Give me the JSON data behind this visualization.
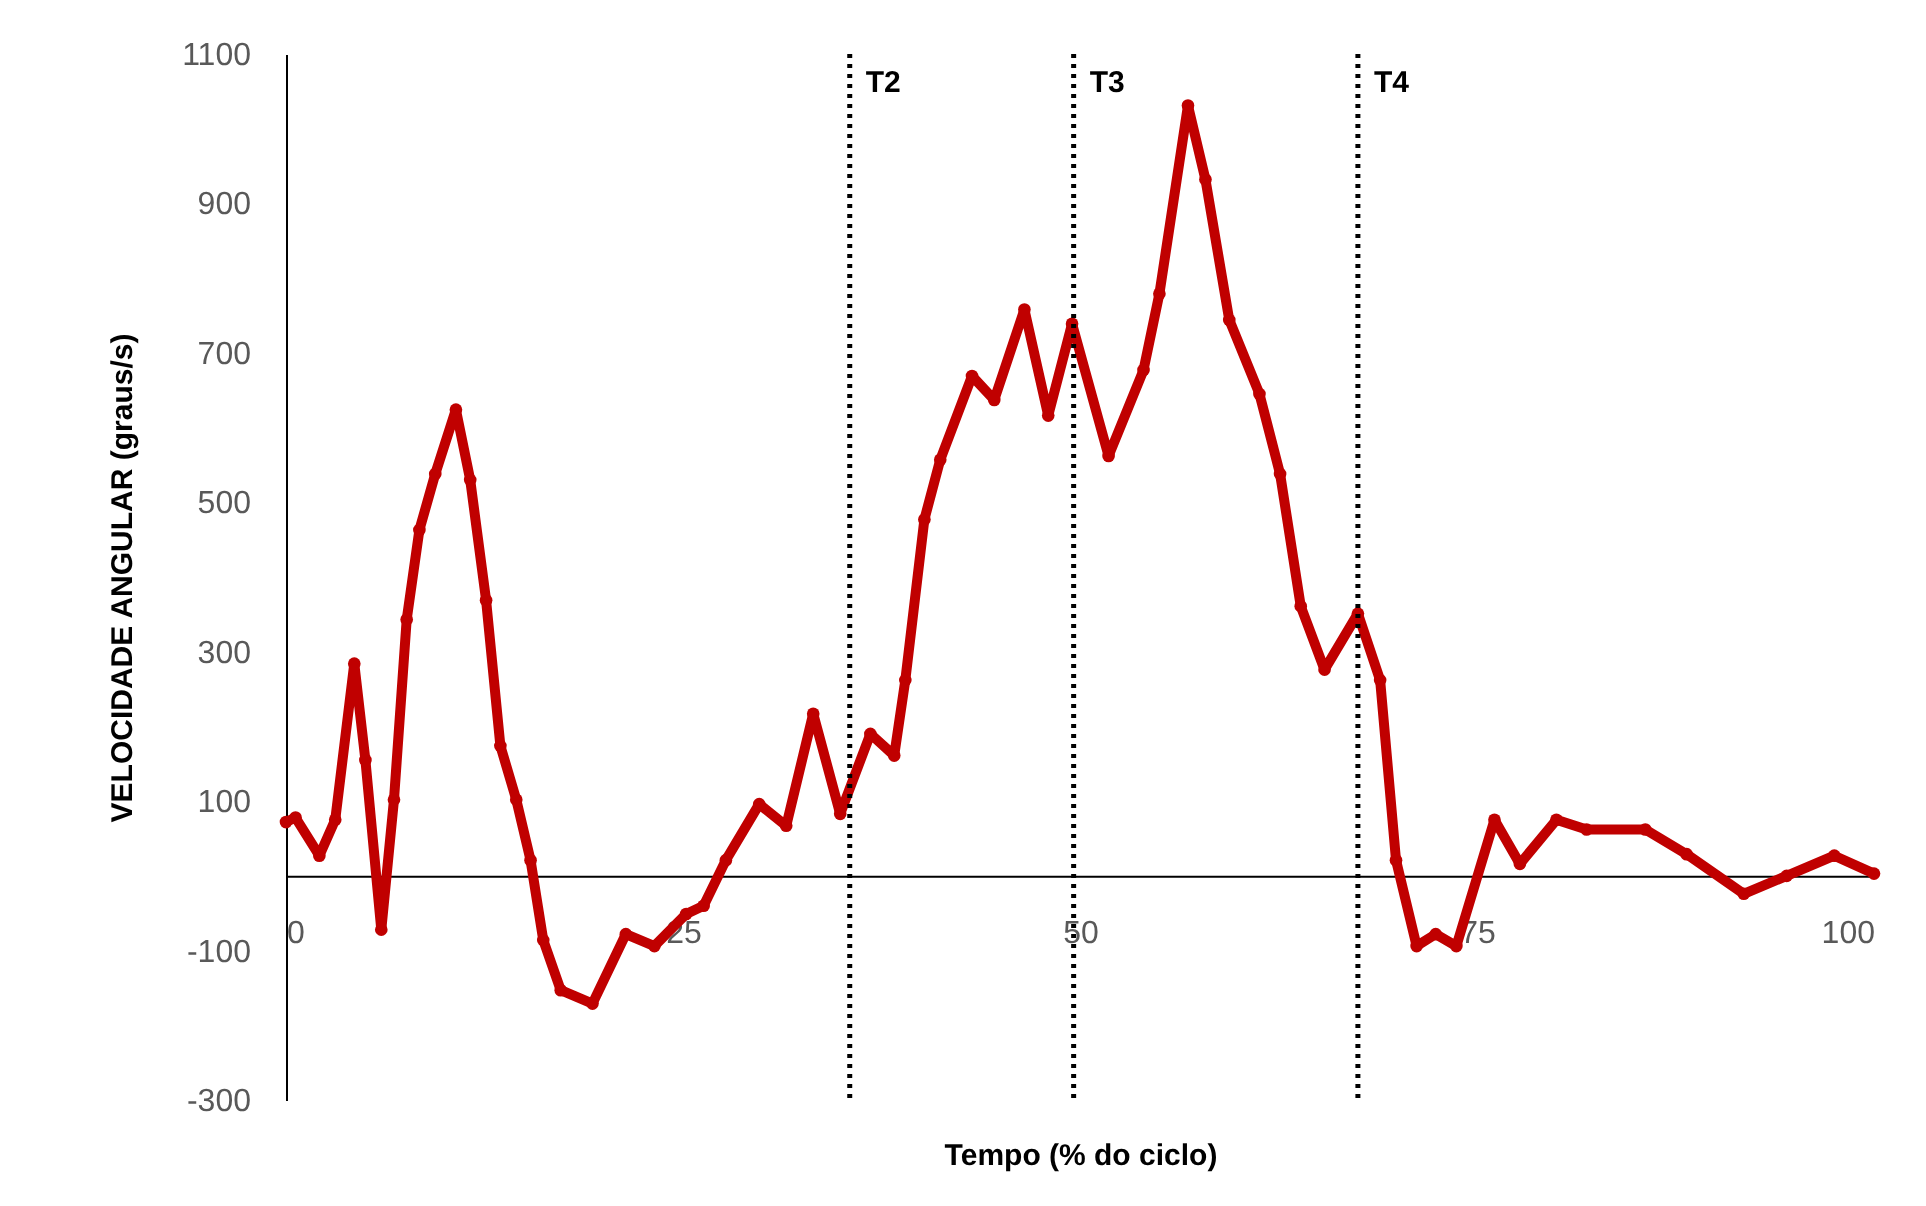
{
  "chart_data": {
    "type": "line",
    "xlabel": "Tempo (% do ciclo)",
    "ylabel": "VELOCIDADE ANGULAR (graus/s)",
    "x": [
      0,
      0.6,
      2.1,
      3.1,
      4.3,
      5.0,
      6.0,
      6.8,
      7.6,
      8.4,
      9.4,
      10.7,
      11.6,
      12.6,
      13.5,
      14.5,
      15.4,
      16.2,
      17.3,
      19.3,
      21.4,
      23.2,
      25.2,
      26.3,
      27.7,
      29.8,
      31.5,
      33.2,
      34.9,
      36.8,
      38.3,
      39.0,
      40.2,
      41.2,
      43.2,
      44.6,
      46.5,
      48.0,
      49.5,
      51.8,
      54.0,
      55.0,
      56.8,
      57.9,
      59.4,
      61.3,
      62.6,
      63.9,
      65.4,
      67.5,
      68.9,
      69.9,
      71.2,
      72.4,
      73.7,
      76.1,
      77.7,
      80.0,
      81.9,
      85.6,
      88.2,
      91.8,
      94.5,
      97.5,
      100
    ],
    "series": [
      {
        "color": "#c00000",
        "values": [
          72,
          78,
          27,
          75,
          284,
          155,
          -72,
          102,
          343,
          463,
          538,
          624,
          530,
          369,
          174,
          102,
          21,
          -86,
          -153,
          -171,
          -78,
          -94,
          -51,
          -40,
          21,
          96,
          67,
          217,
          83,
          190,
          161,
          262,
          477,
          557,
          669,
          637,
          758,
          616,
          739,
          562,
          677,
          779,
          1031,
          932,
          744,
          645,
          538,
          361,
          276,
          351,
          262,
          21,
          -94,
          -78,
          -94,
          75,
          16,
          75,
          62,
          62,
          29,
          -24,
          0,
          27,
          3
        ]
      }
    ],
    "xlim": [
      0,
      100
    ],
    "xticks": [
      0,
      25,
      50,
      75,
      100
    ],
    "ylim": [
      -300,
      1100
    ],
    "yticks": [
      -300,
      -100,
      100,
      300,
      500,
      700,
      900,
      1100
    ],
    "ref_lines": [
      {
        "axis": "x",
        "value": 35.5,
        "label": "T2",
        "line_style": "dotted",
        "color": "#000000"
      },
      {
        "axis": "x",
        "value": 49.6,
        "label": "T3",
        "line_style": "dotted",
        "color": "#000000"
      },
      {
        "axis": "x",
        "value": 67.5,
        "label": "T4",
        "line_style": "dotted",
        "color": "#000000"
      }
    ],
    "grid": false,
    "marker": "circle",
    "line_style": "solid"
  }
}
